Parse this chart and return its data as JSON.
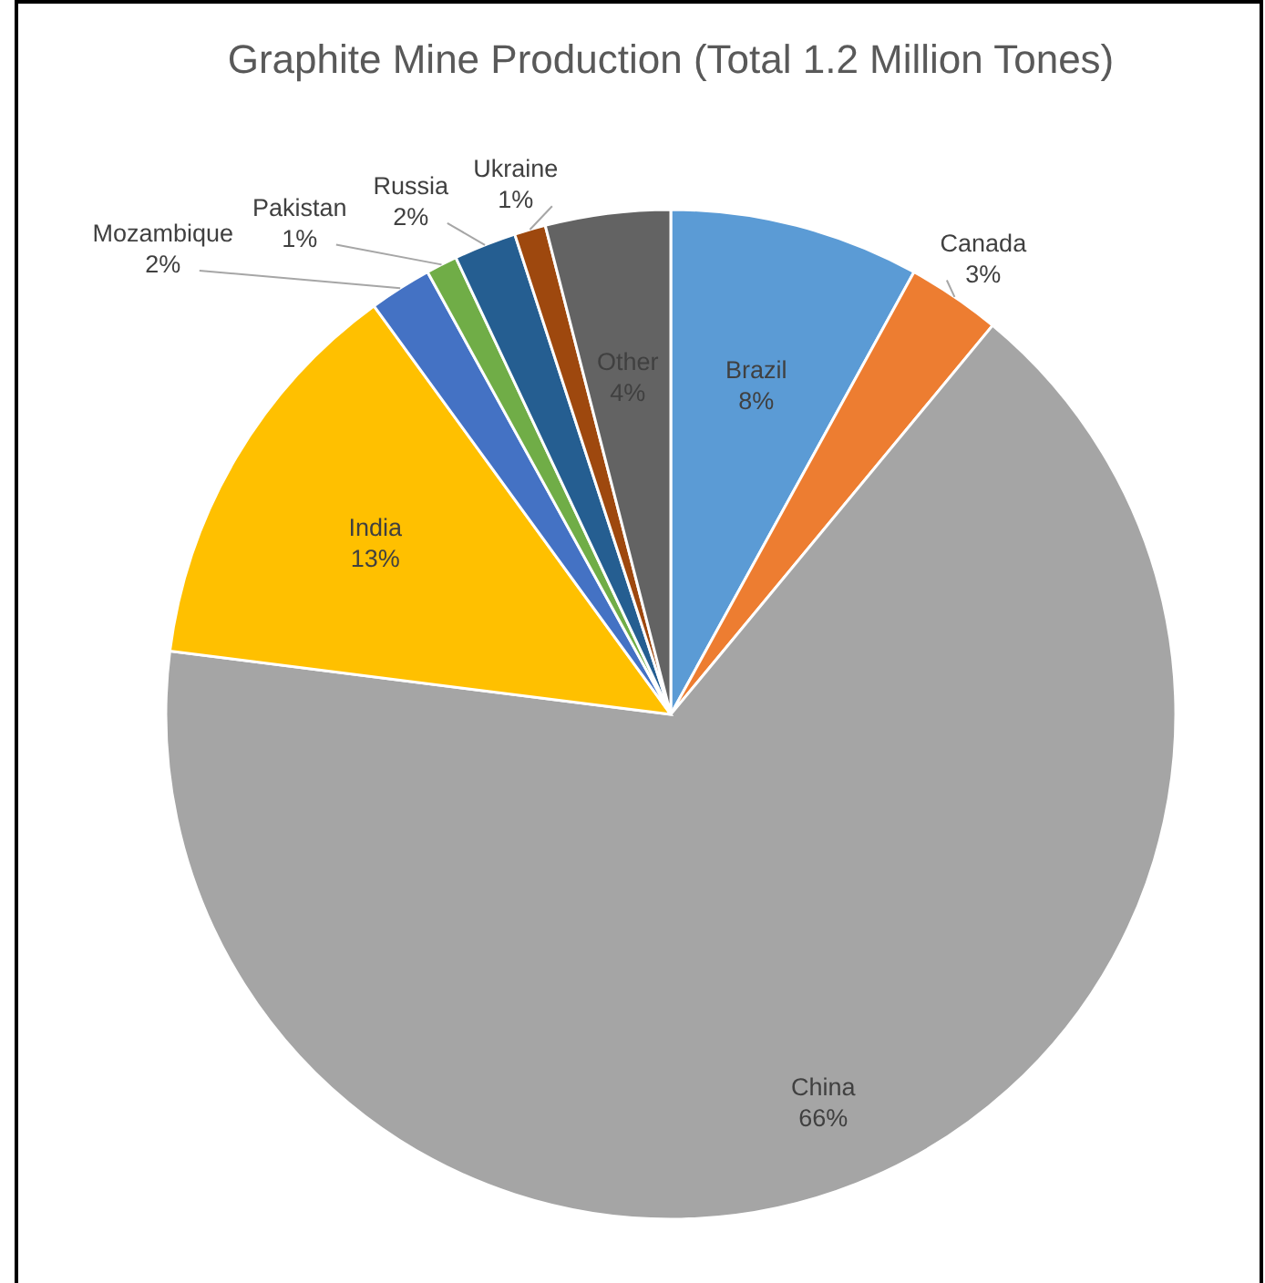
{
  "chart_data": {
    "type": "pie",
    "title": "Graphite Mine Production (Total 1.2 Million Tones)",
    "categories": [
      "Brazil",
      "Canada",
      "China",
      "India",
      "Mozambique",
      "Pakistan",
      "Russia",
      "Ukraine",
      "Other"
    ],
    "values": [
      8,
      3,
      66,
      13,
      2,
      1,
      2,
      1,
      4
    ],
    "value_labels": [
      "8%",
      "3%",
      "66%",
      "13%",
      "2%",
      "1%",
      "2%",
      "1%",
      "4%"
    ],
    "colors": [
      "#5b9bd5",
      "#ed7d31",
      "#a5a5a5",
      "#ffc000",
      "#4472c4",
      "#70ad47",
      "#255e91",
      "#9e480e",
      "#636363"
    ]
  }
}
